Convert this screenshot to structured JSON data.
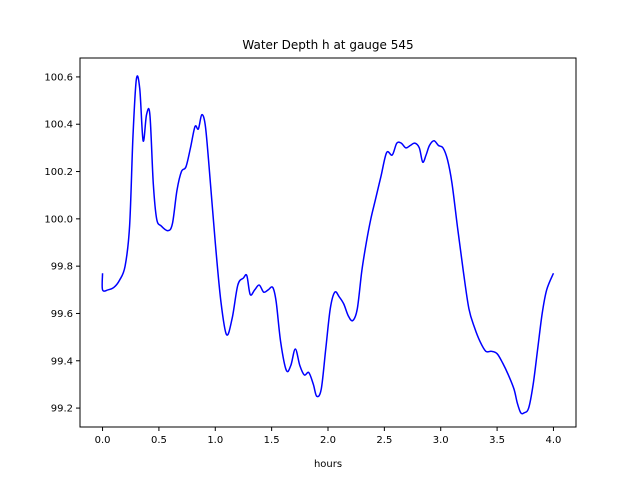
{
  "chart_data": {
    "type": "line",
    "title": "Water Depth h at gauge 545",
    "xlabel": "hours",
    "ylabel": "",
    "xlim": [
      -0.2,
      4.2
    ],
    "ylim": [
      99.12,
      100.68
    ],
    "xticks": [
      0.0,
      0.5,
      1.0,
      1.5,
      2.0,
      2.5,
      3.0,
      3.5,
      4.0
    ],
    "xtick_labels": [
      "0.0",
      "0.5",
      "1.0",
      "1.5",
      "2.0",
      "2.5",
      "3.0",
      "3.5",
      "4.0"
    ],
    "yticks": [
      99.2,
      99.4,
      99.6,
      99.8,
      100.0,
      100.2,
      100.4,
      100.6
    ],
    "ytick_labels": [
      "99.2",
      "99.4",
      "99.6",
      "99.8",
      "100.0",
      "100.2",
      "100.4",
      "100.6"
    ],
    "grid": false,
    "series": [
      {
        "color": "#0000ff",
        "x": [
          0.0,
          0.0,
          0.05,
          0.1,
          0.15,
          0.2,
          0.24,
          0.27,
          0.3,
          0.33,
          0.36,
          0.39,
          0.42,
          0.45,
          0.48,
          0.52,
          0.58,
          0.62,
          0.66,
          0.7,
          0.74,
          0.78,
          0.82,
          0.85,
          0.88,
          0.91,
          0.94,
          1.0,
          1.05,
          1.1,
          1.15,
          1.2,
          1.25,
          1.28,
          1.31,
          1.35,
          1.39,
          1.43,
          1.47,
          1.51,
          1.54,
          1.58,
          1.63,
          1.67,
          1.71,
          1.75,
          1.79,
          1.83,
          1.87,
          1.9,
          1.94,
          1.98,
          2.02,
          2.06,
          2.1,
          2.14,
          2.18,
          2.22,
          2.26,
          2.3,
          2.34,
          2.38,
          2.42,
          2.47,
          2.52,
          2.57,
          2.61,
          2.65,
          2.69,
          2.73,
          2.77,
          2.81,
          2.84,
          2.87,
          2.9,
          2.94,
          2.98,
          3.02,
          3.06,
          3.1,
          3.15,
          3.2,
          3.25,
          3.3,
          3.35,
          3.4,
          3.45,
          3.5,
          3.55,
          3.6,
          3.65,
          3.68,
          3.71,
          3.74,
          3.78,
          3.82,
          3.86,
          3.9,
          3.94,
          4.0
        ],
        "y": [
          99.77,
          99.7,
          99.7,
          99.71,
          99.74,
          99.8,
          99.97,
          100.35,
          100.59,
          100.55,
          100.33,
          100.44,
          100.44,
          100.15,
          100.0,
          99.97,
          99.95,
          99.98,
          100.12,
          100.2,
          100.22,
          100.3,
          100.39,
          100.38,
          100.44,
          100.4,
          100.25,
          99.9,
          99.65,
          99.51,
          99.58,
          99.72,
          99.75,
          99.76,
          99.68,
          99.7,
          99.72,
          99.69,
          99.7,
          99.71,
          99.65,
          99.48,
          99.36,
          99.38,
          99.45,
          99.38,
          99.34,
          99.35,
          99.3,
          99.25,
          99.28,
          99.45,
          99.62,
          99.69,
          99.67,
          99.64,
          99.59,
          99.57,
          99.62,
          99.78,
          99.9,
          100.0,
          100.08,
          100.18,
          100.28,
          100.27,
          100.32,
          100.32,
          100.3,
          100.31,
          100.32,
          100.3,
          100.24,
          100.27,
          100.31,
          100.33,
          100.31,
          100.3,
          100.25,
          100.15,
          99.96,
          99.78,
          99.62,
          99.54,
          99.48,
          99.44,
          99.44,
          99.43,
          99.39,
          99.34,
          99.28,
          99.22,
          99.18,
          99.18,
          99.2,
          99.3,
          99.45,
          99.6,
          99.7,
          99.77
        ]
      }
    ]
  }
}
